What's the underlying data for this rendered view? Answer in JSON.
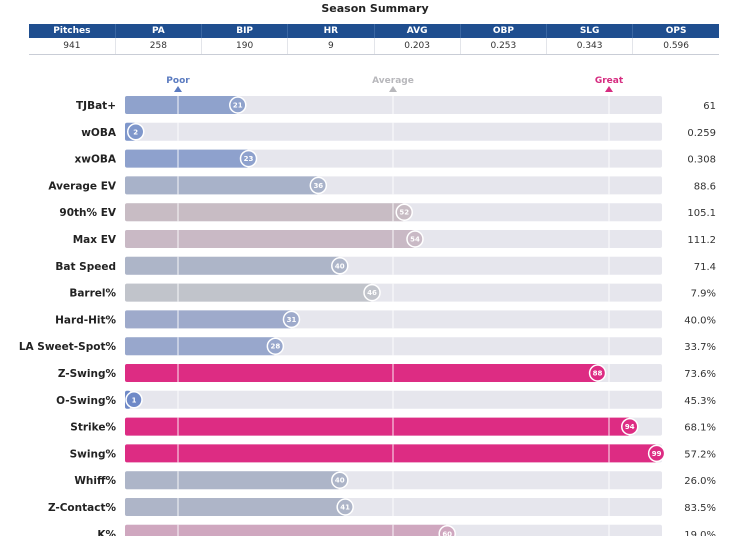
{
  "summary": {
    "title": "Season Summary",
    "headers": [
      "Pitches",
      "PA",
      "BIP",
      "HR",
      "AVG",
      "OBP",
      "SLG",
      "OPS"
    ],
    "values": [
      "941",
      "258",
      "190",
      "9",
      "0.203",
      "0.253",
      "0.343",
      "0.596"
    ]
  },
  "chart_data": {
    "type": "bar",
    "reference_labels": [
      {
        "text": "Poor",
        "percentile": 0,
        "color": "#5b7bc0"
      },
      {
        "text": "Average",
        "percentile": 50,
        "color": "#b8b8bc"
      },
      {
        "text": "Great",
        "percentile": 100,
        "color": "#d62c80"
      }
    ],
    "xlim": [
      0,
      100
    ],
    "categories": [
      "TJBat+",
      "wOBA",
      "xwOBA",
      "Average EV",
      "90th% EV",
      "Max EV",
      "Bat Speed",
      "Barrel%",
      "Hard-Hit%",
      "LA Sweet-Spot%",
      "Z-Swing%",
      "O-Swing%",
      "Strike%",
      "Swing%",
      "Whiff%",
      "Z-Contact%",
      "K%"
    ],
    "percentiles": [
      21,
      2,
      23,
      36,
      52,
      54,
      40,
      46,
      31,
      28,
      88,
      1,
      94,
      99,
      40,
      41,
      60
    ],
    "values": [
      "61",
      "0.259",
      "0.308",
      "88.6",
      "105.1",
      "111.2",
      "71.4",
      "7.9%",
      "40.0%",
      "33.7%",
      "73.6%",
      "45.3%",
      "68.1%",
      "57.2%",
      "26.0%",
      "83.5%",
      "19.0%"
    ],
    "colors": [
      "#8fa2cc",
      "#7f97cb",
      "#8ea1cd",
      "#a8b2c9",
      "#c8bcc4",
      "#c9b9c5",
      "#adb5c8",
      "#c1c4cb",
      "#9eaacb",
      "#98a7cc",
      "#dd2c83",
      "#6f89c7",
      "#dd2c83",
      "#dd2c83",
      "#adb5c8",
      "#aeb5c8",
      "#cfa7bf"
    ]
  }
}
